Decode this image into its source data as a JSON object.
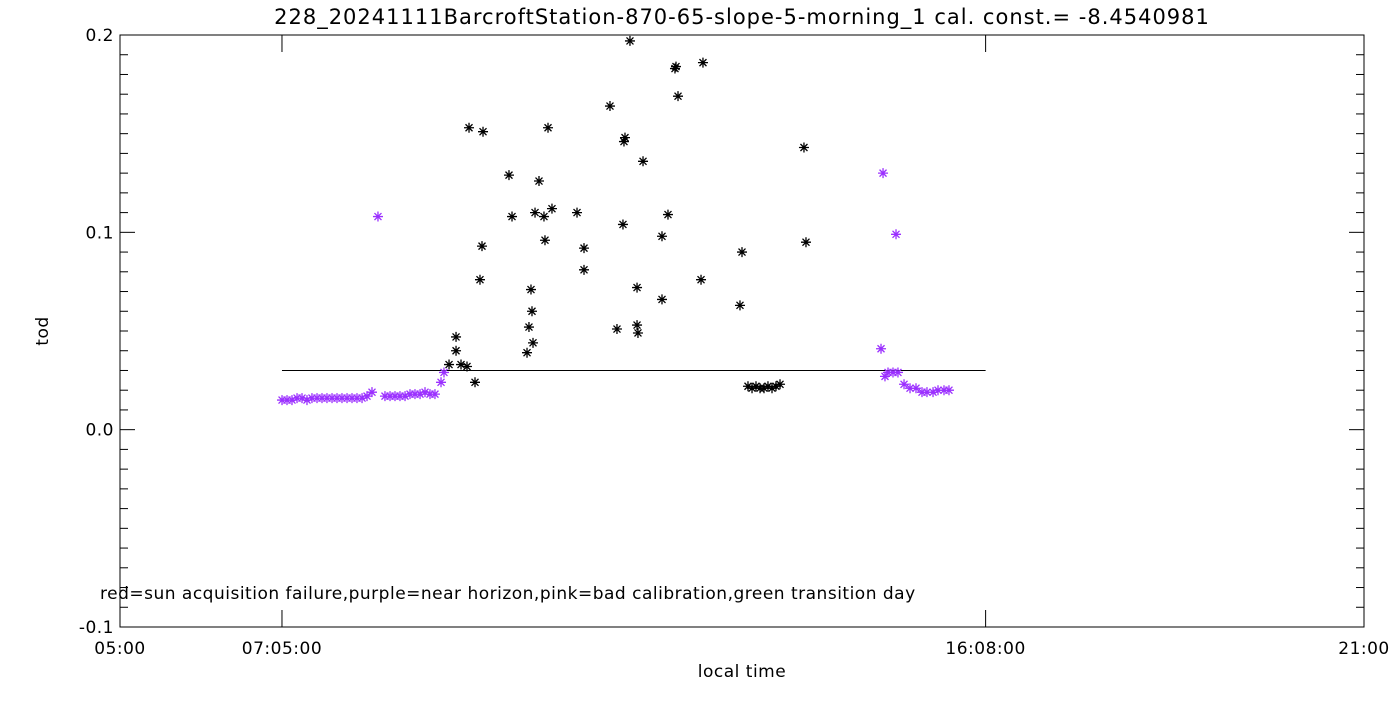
{
  "chart_data": {
    "type": "scatter",
    "title": "228_20241111BarcroftStation-870-65-slope-5-morning_1 cal. const.= -8.4540981",
    "x_label": "local time",
    "y_label": "tod",
    "annotation": "red=sun acquisition failure,purple=near horizon,pink=bad calibration,green transition day",
    "xlim": [
      5,
      21
    ],
    "xticks": [
      {
        "value": 5,
        "label": "05:00"
      },
      {
        "value": 7.0833,
        "label": "07:05:00"
      },
      {
        "value": 16.1333,
        "label": "16:08:00"
      },
      {
        "value": 21,
        "label": "21:00"
      }
    ],
    "ylim": [
      -0.1,
      0.2
    ],
    "yticks": [
      -0.1,
      {
        "value": 0,
        "label": "0.0"
      },
      0.1,
      0.2
    ],
    "yminor": 10,
    "reference_line": {
      "y": 0.03,
      "x": [
        7.0833,
        16.1333
      ],
      "color": "#000000"
    },
    "series": [
      {
        "color": "#000000",
        "x": [
          9.232,
          9.322,
          9.322,
          9.386,
          9.463,
          9.489,
          9.566,
          9.63,
          9.656,
          9.669,
          10.003,
          10.042,
          10.235,
          10.26,
          10.286,
          10.299,
          10.312,
          10.338,
          10.389,
          10.453,
          10.466,
          10.505,
          10.556,
          10.878,
          10.968,
          10.968,
          11.302,
          11.392,
          11.469,
          11.482,
          11.495,
          11.559,
          11.65,
          11.65,
          11.662,
          11.727,
          11.971,
          11.971,
          12.048,
          12.138,
          12.151,
          12.177,
          12.473,
          12.498,
          12.974,
          13.0,
          13.077,
          13.129,
          13.18,
          13.232,
          13.283,
          13.334,
          13.386,
          13.437,
          13.489,
          13.797,
          13.823
        ],
        "values": [
          0.033,
          0.047,
          0.04,
          0.033,
          0.032,
          0.153,
          0.024,
          0.076,
          0.093,
          0.151,
          0.129,
          0.108,
          0.039,
          0.052,
          0.071,
          0.06,
          0.044,
          0.11,
          0.126,
          0.108,
          0.096,
          0.153,
          0.112,
          0.11,
          0.092,
          0.081,
          0.164,
          0.051,
          0.104,
          0.146,
          0.148,
          0.197,
          0.072,
          0.053,
          0.049,
          0.136,
          0.098,
          0.066,
          0.109,
          0.183,
          0.184,
          0.169,
          0.076,
          0.186,
          0.063,
          0.09,
          0.022,
          0.021,
          0.022,
          0.021,
          0.021,
          0.022,
          0.021,
          0.022,
          0.023,
          0.143,
          0.095
        ]
      },
      {
        "color": "#9b30ff",
        "x": [
          7.084,
          7.148,
          7.212,
          7.277,
          7.341,
          7.405,
          7.469,
          7.534,
          7.598,
          7.662,
          7.727,
          7.791,
          7.855,
          7.92,
          7.984,
          8.048,
          8.113,
          8.177,
          8.241,
          8.318,
          8.408,
          8.473,
          8.537,
          8.601,
          8.666,
          8.73,
          8.794,
          8.859,
          8.923,
          8.987,
          9.051,
          9.129,
          9.167,
          14.788,
          14.814,
          14.839,
          14.878,
          14.942,
          14.981,
          15.006,
          15.084,
          15.161,
          15.238,
          15.315,
          15.379,
          15.457,
          15.521,
          15.598,
          15.662
        ],
        "values": [
          0.015,
          0.015,
          0.015,
          0.016,
          0.016,
          0.015,
          0.016,
          0.016,
          0.016,
          0.016,
          0.016,
          0.016,
          0.016,
          0.016,
          0.016,
          0.016,
          0.016,
          0.017,
          0.019,
          0.108,
          0.017,
          0.017,
          0.017,
          0.017,
          0.017,
          0.018,
          0.018,
          0.018,
          0.019,
          0.018,
          0.018,
          0.024,
          0.029,
          0.041,
          0.13,
          0.027,
          0.029,
          0.029,
          0.099,
          0.029,
          0.023,
          0.021,
          0.021,
          0.019,
          0.019,
          0.019,
          0.02,
          0.02,
          0.02
        ]
      }
    ]
  }
}
